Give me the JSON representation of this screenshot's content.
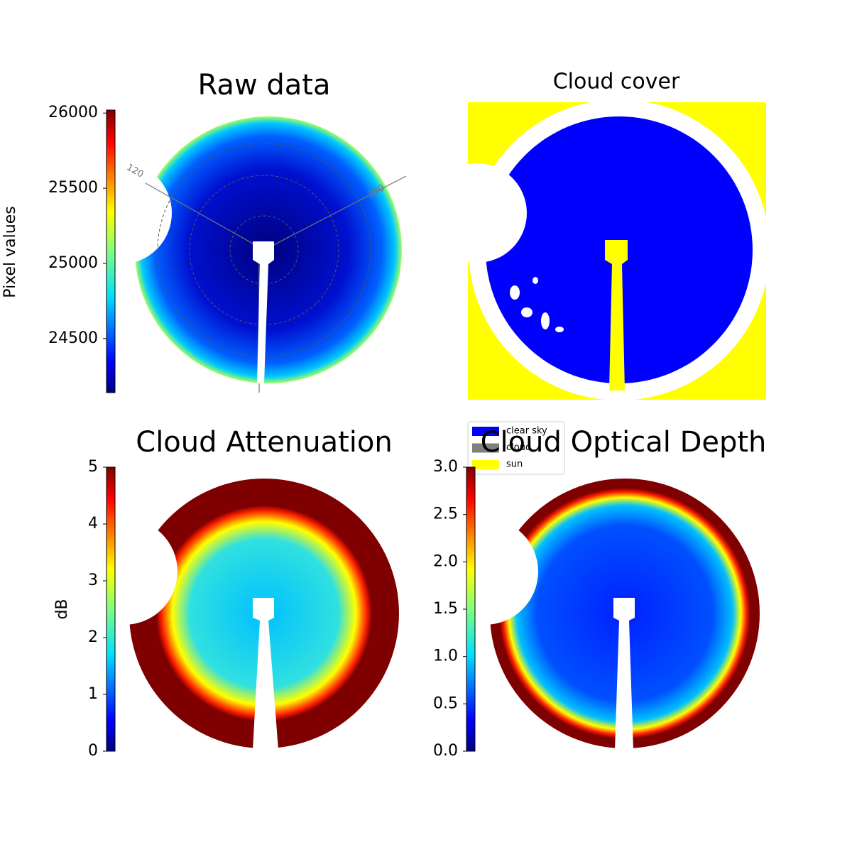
{
  "chart_data": [
    {
      "type": "image",
      "title": "Raw data",
      "colorbar_label": "Pixel values",
      "clim": [
        24140,
        26020
      ],
      "cticks": [
        24500,
        25000,
        25500,
        26000
      ],
      "annotations": [
        "120",
        "240"
      ]
    },
    {
      "type": "image",
      "title": "Cloud cover",
      "legend": [
        {
          "name": "clear sky",
          "color": "#0000ff"
        },
        {
          "name": "cloud",
          "color": "#808080"
        },
        {
          "name": "sun",
          "color": "#ffff00"
        }
      ]
    },
    {
      "type": "image",
      "title": "Cloud Attenuation",
      "colorbar_label": "dB",
      "clim": [
        0,
        5
      ],
      "cticks": [
        0,
        1,
        2,
        3,
        4,
        5
      ]
    },
    {
      "type": "image",
      "title": "Cloud Optical Depth",
      "clim": [
        0,
        3
      ],
      "cticks": [
        {
          "value": 0,
          "label": "0.0"
        },
        {
          "value": 0.5,
          "label": "0.5"
        },
        {
          "value": 1,
          "label": "1.0"
        },
        {
          "value": 1.5,
          "label": "1.5"
        },
        {
          "value": 2,
          "label": "2.0"
        },
        {
          "value": 2.5,
          "label": "2.5"
        },
        {
          "value": 3,
          "label": "3.0"
        }
      ]
    }
  ]
}
